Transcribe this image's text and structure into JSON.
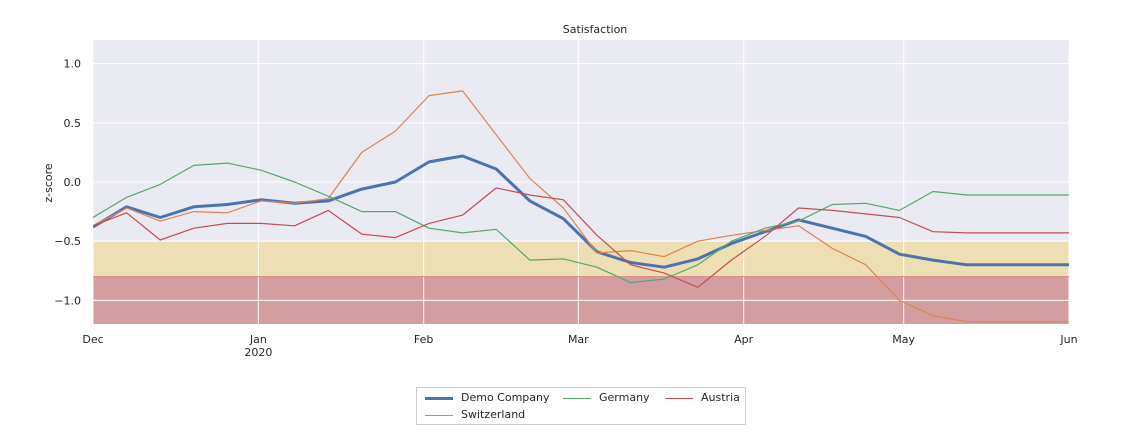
{
  "chart_data": {
    "type": "line",
    "title": "Satisfaction",
    "xlabel": "",
    "ylabel": "z-score",
    "x_range_days": [
      0,
      183
    ],
    "ylim": [
      -1.2,
      1.2
    ],
    "yticks": [
      1.0,
      0.5,
      0.0,
      -0.5,
      -1.0
    ],
    "ytick_labels": [
      "1.0",
      "0.5",
      "0.0",
      "−0.5",
      "−1.0"
    ],
    "xticks": [
      {
        "day": 0,
        "label": "Dec",
        "sublabel": ""
      },
      {
        "day": 31,
        "label": "Jan",
        "sublabel": "2020"
      },
      {
        "day": 62,
        "label": "Feb",
        "sublabel": ""
      },
      {
        "day": 91,
        "label": "Mar",
        "sublabel": ""
      },
      {
        "day": 122,
        "label": "Apr",
        "sublabel": ""
      },
      {
        "day": 152,
        "label": "May",
        "sublabel": ""
      },
      {
        "day": 183,
        "label": "Jun",
        "sublabel": ""
      }
    ],
    "bands": [
      {
        "from": -0.8,
        "to": -0.5,
        "color": "#eddfb3",
        "name": "warning-band"
      },
      {
        "from": -1.2,
        "to": -0.8,
        "color": "#d49ea0",
        "name": "critical-band"
      }
    ],
    "band_lines": [
      {
        "y": -0.8,
        "color": "#d6868a"
      }
    ],
    "grid": true,
    "legend_position": "bottom-center",
    "x": [
      0,
      6.3,
      12.6,
      18.9,
      25.2,
      31.5,
      37.8,
      44.1,
      50.4,
      56.7,
      63,
      69.3,
      75.6,
      81.9,
      88.2,
      94.5,
      100.8,
      107.1,
      113.4,
      119.7,
      126,
      132.3,
      138.6,
      144.9,
      151.2,
      157.5,
      163.8,
      170.1,
      176.4,
      183
    ],
    "series": [
      {
        "name": "Demo Company",
        "color": "#4c72b0",
        "width": 3,
        "values": [
          -0.38,
          -0.21,
          -0.3,
          -0.21,
          -0.19,
          -0.15,
          -0.18,
          -0.16,
          -0.06,
          0.0,
          0.17,
          0.22,
          0.11,
          -0.16,
          -0.31,
          -0.59,
          -0.68,
          -0.72,
          -0.65,
          -0.52,
          -0.42,
          -0.32,
          -0.39,
          -0.46,
          -0.61,
          -0.66,
          -0.7,
          -0.7,
          -0.7,
          -0.7
        ]
      },
      {
        "name": "Switzerland",
        "color": "#dd8452",
        "width": 1.2,
        "values": [
          -0.37,
          -0.22,
          -0.33,
          -0.25,
          -0.26,
          -0.16,
          -0.18,
          -0.14,
          0.25,
          0.43,
          0.73,
          0.77,
          0.4,
          0.03,
          -0.22,
          -0.6,
          -0.58,
          -0.63,
          -0.5,
          -0.45,
          -0.41,
          -0.37,
          -0.56,
          -0.7,
          -1.0,
          -1.13,
          -1.18,
          -1.18,
          -1.18,
          -1.18
        ]
      },
      {
        "name": "Germany",
        "color": "#55a868",
        "width": 1.2,
        "values": [
          -0.3,
          -0.13,
          -0.02,
          0.14,
          0.16,
          0.1,
          0.0,
          -0.12,
          -0.25,
          -0.25,
          -0.39,
          -0.43,
          -0.4,
          -0.66,
          -0.65,
          -0.72,
          -0.85,
          -0.82,
          -0.7,
          -0.5,
          -0.39,
          -0.33,
          -0.19,
          -0.18,
          -0.24,
          -0.08,
          -0.11,
          -0.11,
          -0.11,
          -0.11
        ]
      },
      {
        "name": "Austria",
        "color": "#c44e52",
        "width": 1.2,
        "values": [
          -0.37,
          -0.26,
          -0.49,
          -0.39,
          -0.35,
          -0.35,
          -0.37,
          -0.24,
          -0.44,
          -0.47,
          -0.35,
          -0.28,
          -0.05,
          -0.11,
          -0.15,
          -0.45,
          -0.7,
          -0.77,
          -0.89,
          -0.66,
          -0.46,
          -0.22,
          -0.24,
          -0.27,
          -0.3,
          -0.42,
          -0.43,
          -0.43,
          -0.43,
          -0.43
        ]
      }
    ]
  }
}
